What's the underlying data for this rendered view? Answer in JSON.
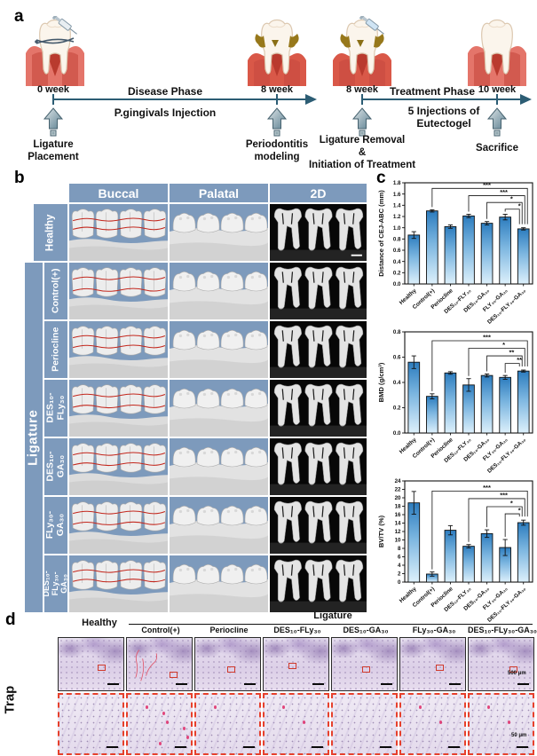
{
  "figure": {
    "panel_a_label": "a",
    "panel_b_label": "b",
    "panel_c_label": "c",
    "panel_d_label": "d"
  },
  "panel_a": {
    "milestones": [
      {
        "week": "0 week",
        "label": "Ligature\nPlacement"
      },
      {
        "week": "8 week",
        "label": "Periodontitis\nmodeling"
      },
      {
        "week": "8 week",
        "label": "Ligature Removal\n&\nInitiation of Treatment"
      },
      {
        "week": "10 week",
        "label": "Sacrifice"
      }
    ],
    "phase1": {
      "title": "Disease Phase",
      "subtitle": "P.gingivals Injection"
    },
    "phase2": {
      "title": "Treatment Phase",
      "subtitle": "5 Injections of\nEutectogel"
    }
  },
  "panel_b": {
    "col_headers": [
      "Buccal",
      "Palatal",
      "2D"
    ],
    "group_label": "Ligature",
    "rows": [
      "Healthy",
      "Control(+)",
      "Periocline",
      "DES₁₀-\nFLy₃₀",
      "DES₁₀-\nGA₃₀",
      "FLy₃₀-\nGA₃₀",
      "DES₁₀-\nFLy₃₀-GA₃₀"
    ]
  },
  "panel_d": {
    "row_label": "Trap",
    "healthy_label": "Healthy",
    "group_label": "Ligature",
    "columns": [
      "Control(+)",
      "Periocline",
      "DES₁₀-FLy₃₀",
      "DES₁₀-GA₃₀",
      "FLy₃₀-GA₃₀",
      "DES₁₀-FLy₃₀-GA₃₀"
    ],
    "scale_bar_top": "500 μm",
    "scale_bar_bottom": "50 μm"
  },
  "colors": {
    "panel_blue": "#7d9abc",
    "bar_top": "#2c7cbe",
    "bar_bottom": "#ddf0fb",
    "timeline": "#2c5d74",
    "red_line": "#c3271d",
    "inset_border": "#e6402c"
  },
  "chart_data": [
    {
      "type": "bar",
      "ylabel": "Distance of CEJ-ABC (mm)",
      "ylim": [
        0,
        1.8
      ],
      "ytick_step": 0.2,
      "ydecimals": 1,
      "categories": [
        "Healthy",
        "Control(+)",
        "Periocline",
        "DES₁₀-FLY₃₀",
        "DES₁₀-GA₃₀",
        "FLY₃₀-GA₃₀",
        "DES₁₀-FLY₃₀-GA₃₀"
      ],
      "values": [
        0.87,
        1.3,
        1.02,
        1.21,
        1.08,
        1.19,
        0.98
      ],
      "errors": [
        0.06,
        0.02,
        0.03,
        0.03,
        0.03,
        0.05,
        0.02
      ],
      "significance": [
        {
          "from": 1,
          "to": 6,
          "label": "***",
          "level": 1.7
        },
        {
          "from": 3,
          "to": 6,
          "label": "***",
          "level": 1.57
        },
        {
          "from": 4,
          "to": 6,
          "label": "*",
          "level": 1.45
        },
        {
          "from": 5,
          "to": 6,
          "label": "*",
          "level": 1.33
        }
      ]
    },
    {
      "type": "bar",
      "ylabel": "BMD (g/cm³)",
      "ylim": [
        0,
        0.8
      ],
      "ytick_step": 0.2,
      "ydecimals": 1,
      "categories": [
        "Healthy",
        "Control(+)",
        "Periocline",
        "DES₁₀-FLY₃₀",
        "DES₁₀-GA₃₀",
        "FLY₃₀-GA₃₀",
        "DES₁₀-FLY₃₀-GA₃₀"
      ],
      "values": [
        0.56,
        0.29,
        0.475,
        0.38,
        0.455,
        0.44,
        0.49
      ],
      "errors": [
        0.05,
        0.02,
        0.01,
        0.05,
        0.012,
        0.015,
        0.008
      ],
      "significance": [
        {
          "from": 1,
          "to": 6,
          "label": "***",
          "level": 0.73
        },
        {
          "from": 3,
          "to": 6,
          "label": "*",
          "level": 0.67
        },
        {
          "from": 4,
          "to": 6,
          "label": "**",
          "level": 0.61
        },
        {
          "from": 5,
          "to": 6,
          "label": "**",
          "level": 0.55
        }
      ]
    },
    {
      "type": "bar",
      "ylabel": "BV/TV (%)",
      "ylim": [
        0,
        24
      ],
      "ytick_step": 2,
      "ydecimals": 0,
      "categories": [
        "Healthy",
        "Control(+)",
        "Periocline",
        "DES₁₀-FLY₃₀",
        "DES₁₀-GA₃₀",
        "FLY₃₀-GA₃₀",
        "DES₁₀-FLY₃₀-GA₃₀"
      ],
      "values": [
        18.8,
        1.9,
        12.3,
        8.5,
        11.5,
        8.2,
        14.1
      ],
      "errors": [
        2.7,
        0.5,
        1.1,
        0.4,
        0.9,
        1.9,
        0.6
      ],
      "significance": [
        {
          "from": 1,
          "to": 6,
          "label": "***",
          "level": 21.6
        },
        {
          "from": 3,
          "to": 6,
          "label": "***",
          "level": 19.8
        },
        {
          "from": 4,
          "to": 6,
          "label": "*",
          "level": 17.9
        },
        {
          "from": 5,
          "to": 6,
          "label": "*",
          "level": 16.2
        }
      ]
    }
  ]
}
